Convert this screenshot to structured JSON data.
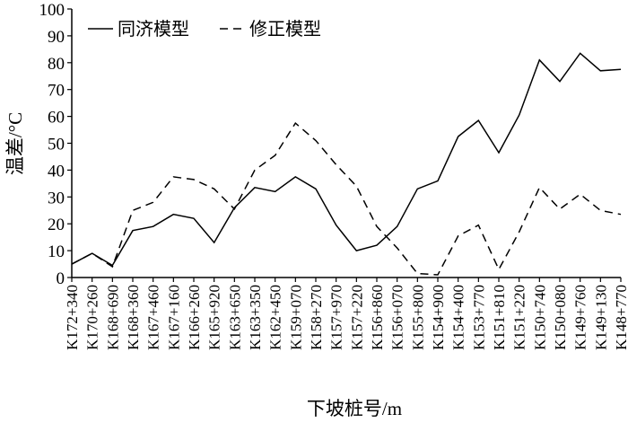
{
  "chart_data": {
    "type": "line",
    "categories": [
      "K172+340",
      "K170+260",
      "K168+690",
      "K168+360",
      "K167+460",
      "K167+160",
      "K166+260",
      "K165+920",
      "K163+650",
      "K163+350",
      "K162+450",
      "K159+070",
      "K158+270",
      "K157+970",
      "K157+220",
      "K156+860",
      "K156+070",
      "K155+800",
      "K154+900",
      "K154+400",
      "K153+770",
      "K151+810",
      "K151+220",
      "K150+740",
      "K150+080",
      "K149+760",
      "K149+130",
      "K148+770"
    ],
    "series": [
      {
        "name": "同济模型",
        "color": "#000000",
        "dash": "solid",
        "values": [
          5,
          9,
          4.5,
          17.5,
          19,
          23.5,
          22,
          13,
          26,
          33.5,
          32,
          37.5,
          33,
          19.5,
          10,
          12,
          19,
          33,
          36,
          52.5,
          58.5,
          46.5,
          60.5,
          81,
          73,
          83.5,
          77,
          77.5
        ]
      },
      {
        "name": "修正模型",
        "color": "#000000",
        "dash": "dashed",
        "values": [
          5,
          9,
          4,
          25,
          28,
          37.5,
          36.5,
          33,
          25.5,
          40,
          45.5,
          57.5,
          51,
          42,
          34,
          19,
          11,
          1.5,
          1,
          15.5,
          19.5,
          3,
          17,
          33.5,
          25.5,
          31,
          25,
          23.5
        ]
      }
    ],
    "xlabel": "下坡桩号/m",
    "ylabel": "温差/°C",
    "ylim": [
      0,
      100
    ],
    "yticks": [
      0,
      10,
      20,
      30,
      40,
      50,
      60,
      70,
      80,
      90,
      100
    ]
  }
}
